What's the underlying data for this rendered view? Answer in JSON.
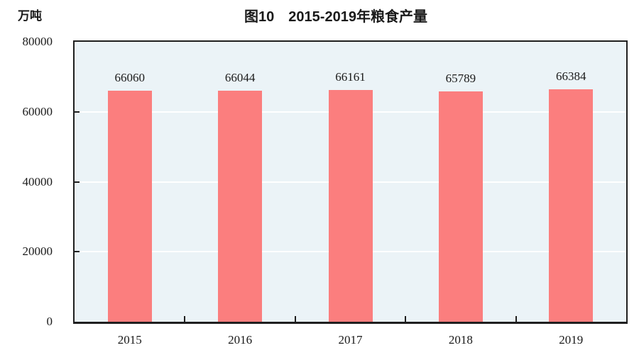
{
  "chart_data": {
    "type": "bar",
    "title": "图10　2015-2019年粮食产量",
    "unit": "万吨",
    "categories": [
      "2015",
      "2016",
      "2017",
      "2018",
      "2019"
    ],
    "values": [
      66060,
      66044,
      66161,
      65789,
      66384
    ],
    "value_labels": [
      "66060",
      "66044",
      "66161",
      "65789",
      "66384"
    ],
    "ylim": [
      0,
      80000
    ],
    "yticks": [
      0,
      20000,
      40000,
      60000,
      80000
    ],
    "ytick_labels": [
      "0",
      "20000",
      "40000",
      "60000",
      "80000"
    ],
    "grid": "horizontal",
    "legend_position": "none",
    "colors": {
      "bar": "#fb7e7e",
      "plot_background": "#ebf3f7",
      "gridline": "#ffffff",
      "axis": "#1f1f1f",
      "text": "#1a1a1a",
      "page_background": "#ffffff"
    }
  }
}
